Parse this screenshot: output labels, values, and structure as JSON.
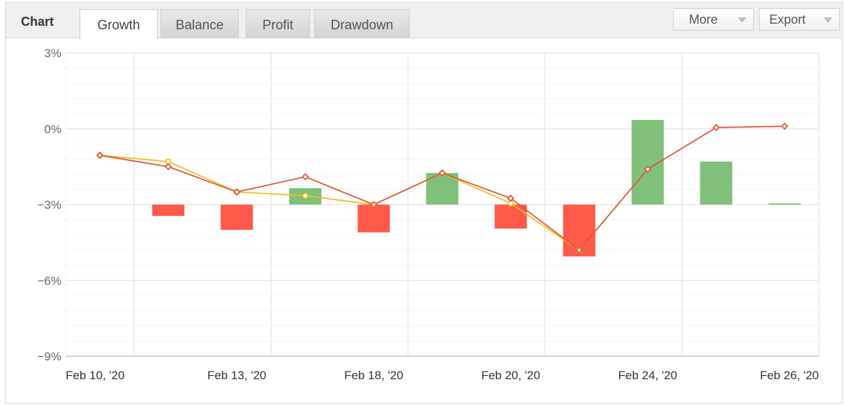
{
  "header": {
    "chart_label": "Chart",
    "tabs": [
      {
        "label": "Growth",
        "active": true
      },
      {
        "label": "Balance",
        "active": false
      },
      {
        "label": "Profit",
        "active": false
      },
      {
        "label": "Drawdown",
        "active": false
      }
    ],
    "more_label": "More",
    "export_label": "Export"
  },
  "chart_data": {
    "type": "bar",
    "title": "",
    "xlabel": "",
    "ylabel": "",
    "ylim": [
      -9,
      3
    ],
    "y_ticks": [
      "3%",
      "0%",
      "−3%",
      "−6%",
      "−9%"
    ],
    "x_ticks": [
      "Feb 10, '20",
      "Feb 13, '20",
      "Feb 18, '20",
      "Feb 20, '20",
      "Feb 24, '20",
      "Feb 26, '20"
    ],
    "grid": true,
    "bar_baseline": -3,
    "bars": [
      {
        "x": 1.5,
        "value": -3.45
      },
      {
        "x": 2.5,
        "value": -4.0
      },
      {
        "x": 3.5,
        "value": -2.35
      },
      {
        "x": 4.5,
        "value": -4.1
      },
      {
        "x": 5.5,
        "value": -1.75
      },
      {
        "x": 6.5,
        "value": -3.95
      },
      {
        "x": 7.5,
        "value": -5.05
      },
      {
        "x": 8.5,
        "value": 0.35
      },
      {
        "x": 9.5,
        "value": -1.3
      },
      {
        "x": 10.5,
        "value": -2.95
      }
    ],
    "series": [
      {
        "values": [
          [
            0.5,
            -1.05
          ],
          [
            1.5,
            -1.5
          ],
          [
            2.5,
            -2.5
          ],
          [
            3.5,
            -1.9
          ],
          [
            4.5,
            -3.0
          ],
          [
            5.5,
            -1.75
          ],
          [
            6.5,
            -2.75
          ],
          [
            7.5,
            -4.8
          ],
          [
            8.5,
            -1.6
          ],
          [
            9.5,
            0.05
          ],
          [
            10.5,
            0.1
          ]
        ]
      },
      {
        "values": [
          [
            0.5,
            -1.05
          ],
          [
            1.5,
            -1.3
          ],
          [
            2.5,
            -2.5
          ],
          [
            3.5,
            -2.65
          ],
          [
            4.5,
            -3.0
          ],
          [
            5.5,
            -1.75
          ],
          [
            6.5,
            -2.95
          ],
          [
            7.5,
            -4.8
          ]
        ]
      }
    ],
    "colors": {
      "positive_bar": "#7fc07a",
      "negative_bar": "#ff5a4a",
      "line_1": "#e0583a",
      "line_2": "#f0c020",
      "grid": "#e8e8e8"
    }
  }
}
